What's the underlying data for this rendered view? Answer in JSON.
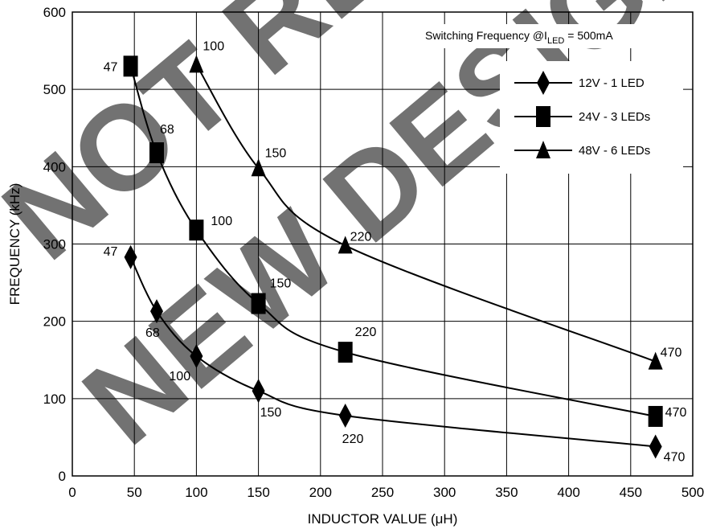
{
  "chart_data": {
    "type": "line",
    "title": "",
    "xlabel": "INDUCTOR VALUE (μH)",
    "ylabel": "FREQUENCY (kHz)",
    "xlim": [
      0,
      500
    ],
    "ylim": [
      0,
      600
    ],
    "xticks": [
      0,
      50,
      100,
      150,
      200,
      250,
      300,
      350,
      400,
      450,
      500
    ],
    "yticks": [
      0,
      100,
      200,
      300,
      400,
      500,
      600
    ],
    "grid": true,
    "legend_position": "top-right",
    "annotation": {
      "prefix": "Switching Frequency @I",
      "subscript": "LED",
      "suffix": " = 500mA"
    },
    "watermark": "NOT RECOMMENDED FOR NEW DESIGNS",
    "series": [
      {
        "name": "12V - 1 LED",
        "marker": "diamond",
        "x": [
          47,
          68,
          100,
          150,
          220,
          470
        ],
        "y": [
          283,
          213,
          155,
          110,
          78,
          38
        ],
        "point_labels": [
          "47",
          "68",
          "100",
          "150",
          "220",
          "470"
        ]
      },
      {
        "name": "24V - 3 LEDs",
        "marker": "square",
        "x": [
          47,
          68,
          100,
          150,
          220,
          470
        ],
        "y": [
          530,
          418,
          318,
          223,
          160,
          77
        ],
        "point_labels": [
          "47",
          "68",
          "100",
          "150",
          "220",
          "470"
        ]
      },
      {
        "name": "48V - 6 LEDs",
        "marker": "triangle",
        "x": [
          100,
          150,
          220,
          470
        ],
        "y": [
          532,
          398,
          298,
          148
        ],
        "point_labels": [
          "100",
          "150",
          "220",
          "470"
        ]
      }
    ]
  }
}
